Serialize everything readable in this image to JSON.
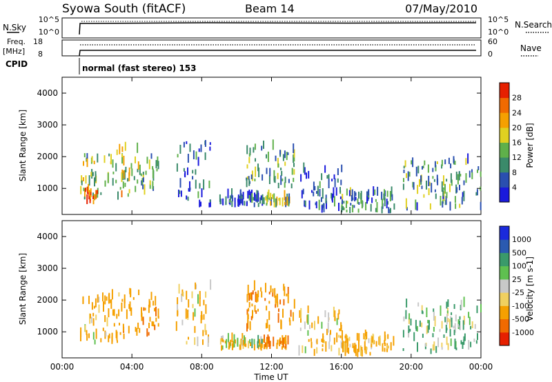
{
  "header": {
    "station": "Syowa South (fitACF)",
    "beam": "Beam 14",
    "date": "07/May/2010"
  },
  "status_panels": {
    "nsky_label": "N.Sky",
    "freq_label_1": "Freq.",
    "freq_label_2": "[MHz]",
    "cpid_label": "CPID",
    "nsearch_label": "N.Search",
    "nave_label": "Nave",
    "nsky_ticks": [
      "10^5",
      "10^0"
    ],
    "nsearch_ticks": [
      "10^5",
      "10^0"
    ],
    "freq_ticks": [
      "18",
      "8"
    ],
    "nave_ticks": [
      "60",
      "0"
    ],
    "cpid_text": "normal (fast stereo) 153"
  },
  "colors": {
    "power_scale": [
      "#1a1adc",
      "#2a4fb0",
      "#3a8a6a",
      "#5fb04a",
      "#e0d020",
      "#f5a000",
      "#f06a00",
      "#e62000"
    ],
    "velocity_scale": [
      "#e62000",
      "#f06a00",
      "#f5a000",
      "#f0d060",
      "#c8c8c8",
      "#5fc050",
      "#3a9a6a",
      "#2a5ab0",
      "#1a2adc"
    ]
  },
  "chart_data": [
    {
      "type": "heatmap",
      "name": "power",
      "ylabel": "Slant Range [km]",
      "yticks": [
        "1000",
        "2000",
        "3000",
        "4000"
      ],
      "ylim": [
        180,
        4500
      ],
      "xlim": [
        0,
        24
      ],
      "colorbar_label": "Power [dB]",
      "colorbar_ticks": [
        "4",
        "8",
        "12",
        "16",
        "20",
        "24",
        "28"
      ],
      "color_range": [
        0,
        30
      ],
      "echo_regions": [
        {
          "t": [
            1.0,
            2.5
          ],
          "r": [
            600,
            2000
          ],
          "level": 14
        },
        {
          "t": [
            2.5,
            4.5
          ],
          "r": [
            600,
            2200
          ],
          "level": 16
        },
        {
          "t": [
            4.5,
            5.6
          ],
          "r": [
            800,
            2000
          ],
          "level": 12
        },
        {
          "t": [
            1.3,
            2.0
          ],
          "r": [
            500,
            900
          ],
          "level": 26
        },
        {
          "t": [
            6.5,
            8.5
          ],
          "r": [
            400,
            2400
          ],
          "level": 6
        },
        {
          "t": [
            9.0,
            11.5
          ],
          "r": [
            400,
            700
          ],
          "level": 6
        },
        {
          "t": [
            11.5,
            13.0
          ],
          "r": [
            400,
            700
          ],
          "level": 14
        },
        {
          "t": [
            10.5,
            13.3
          ],
          "r": [
            1000,
            2300
          ],
          "level": 11
        },
        {
          "t": [
            13.5,
            16.0
          ],
          "r": [
            200,
            1600
          ],
          "level": 6
        },
        {
          "t": [
            16.0,
            19.0
          ],
          "r": [
            200,
            800
          ],
          "level": 9
        },
        {
          "t": [
            19.5,
            24.0
          ],
          "r": [
            300,
            1800
          ],
          "level": 10
        }
      ]
    },
    {
      "type": "heatmap",
      "name": "velocity",
      "ylabel": "Slant Range [km]",
      "yticks": [
        "1000",
        "2000",
        "3000",
        "4000"
      ],
      "ylim": [
        180,
        4500
      ],
      "xlabel": "Time UT",
      "xticks": [
        "00:00",
        "04:00",
        "08:00",
        "12:00",
        "16:00",
        "20:00",
        "00:00"
      ],
      "xlim": [
        0,
        24
      ],
      "colorbar_label": "Velocity [m s-1]",
      "colorbar_ticks": [
        "-1000",
        "-500",
        "-100",
        "-25",
        "25",
        "100",
        "500",
        "1000"
      ],
      "echo_regions": [
        {
          "t": [
            1.0,
            2.5
          ],
          "r": [
            600,
            2000
          ],
          "level": -150
        },
        {
          "t": [
            2.5,
            4.5
          ],
          "r": [
            600,
            2200
          ],
          "level": -300
        },
        {
          "t": [
            4.5,
            5.6
          ],
          "r": [
            800,
            2000
          ],
          "level": -400
        },
        {
          "t": [
            6.5,
            8.5
          ],
          "r": [
            400,
            2400
          ],
          "level": -150
        },
        {
          "t": [
            9.0,
            11.5
          ],
          "r": [
            400,
            700
          ],
          "level": -100
        },
        {
          "t": [
            11.5,
            13.0
          ],
          "r": [
            400,
            700
          ],
          "level": -500
        },
        {
          "t": [
            10.5,
            13.3
          ],
          "r": [
            1000,
            2300
          ],
          "level": -400
        },
        {
          "t": [
            13.5,
            16.0
          ],
          "r": [
            200,
            1600
          ],
          "level": -150
        },
        {
          "t": [
            16.0,
            19.0
          ],
          "r": [
            200,
            800
          ],
          "level": -200
        },
        {
          "t": [
            19.5,
            24.0
          ],
          "r": [
            300,
            1800
          ],
          "level": 120
        }
      ]
    }
  ]
}
